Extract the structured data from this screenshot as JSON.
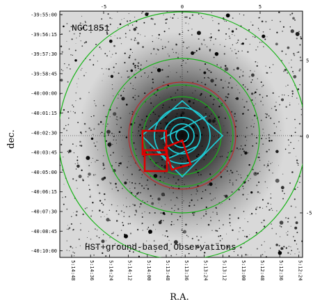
{
  "object_label": "NGC1851",
  "caption": "HST+ground-based Observations",
  "y_axis_title": "dec.",
  "x_axis_title": "R.A.",
  "top_ticks": [
    "-5",
    "0",
    "5"
  ],
  "right_ticks": [
    "5",
    "0",
    "-5"
  ],
  "dec_ticks": [
    "-39:55:00",
    "-39:56:15",
    "-39:57:30",
    "-39:58:45",
    "-40:00:00",
    "-40:01:15",
    "-40:02:30",
    "-40:03:45",
    "-40:05:00",
    "-40:06:15",
    "-40:07:30",
    "-40:08:45",
    "-40:10:00"
  ],
  "ra_ticks": [
    "5:14:48",
    "5:14:36",
    "5:14:24",
    "5:14:12",
    "5:14:00",
    "5:13:48",
    "5:13:36",
    "5:13:24",
    "5:13:12",
    "5:13:00",
    "5:12:48",
    "5:12:36",
    "5:12:24"
  ],
  "colors": {
    "image_bg": "#d9d9d9",
    "green_ring": "#18b418",
    "red_ring": "#c81e1e",
    "cyan_shapes": "#1ec8d2",
    "red_squares": "#e00000",
    "stars": "#000000"
  }
}
